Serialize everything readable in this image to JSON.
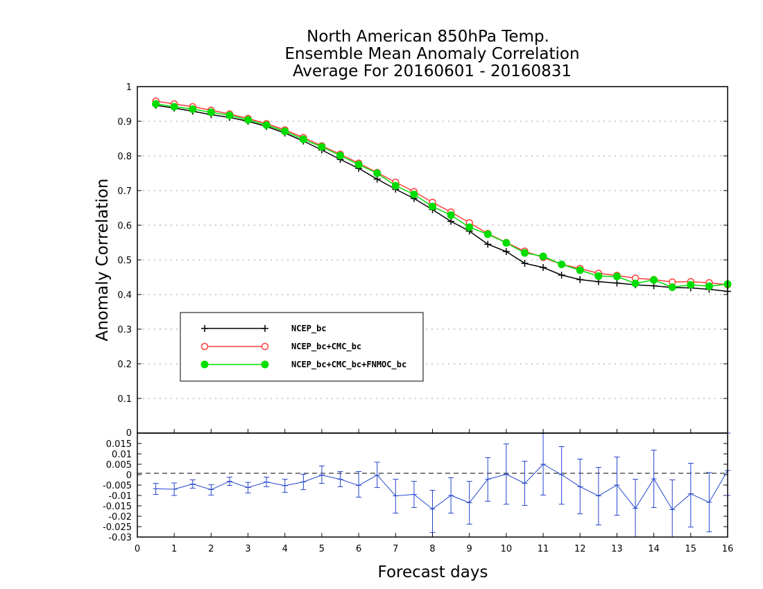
{
  "chart_data": {
    "type": "line",
    "title_lines": [
      "North American 850hPa Temp.",
      "Ensemble Mean Anomaly Correlation",
      "Average For 20160601 - 20160831"
    ],
    "xlabel": "Forecast days",
    "ylabel": "Anomaly Correlation",
    "xlim": [
      0,
      16
    ],
    "x_ticks": [
      "0",
      "1",
      "2",
      "3",
      "4",
      "5",
      "6",
      "7",
      "8",
      "9",
      "10",
      "11",
      "12",
      "13",
      "14",
      "15",
      "16"
    ],
    "main_panel": {
      "ylim": [
        0,
        1
      ],
      "y_ticks": [
        "0",
        "0.1",
        "0.2",
        "0.3",
        "0.4",
        "0.5",
        "0.6",
        "0.7",
        "0.8",
        "0.9",
        "1"
      ],
      "grid": "dotted horizontal",
      "x": [
        0.5,
        1,
        1.5,
        2,
        2.5,
        3,
        3.5,
        4,
        4.5,
        5,
        5.5,
        6,
        6.5,
        7,
        7.5,
        8,
        8.5,
        9,
        9.5,
        10,
        10.5,
        11,
        11.5,
        12,
        12.5,
        13,
        13.5,
        14,
        14.5,
        15,
        15.5,
        16
      ],
      "series": [
        {
          "name": "NCEP_bc",
          "color": "#000000",
          "marker": "plus",
          "values": [
            0.946,
            0.938,
            0.929,
            0.919,
            0.911,
            0.9,
            0.885,
            0.866,
            0.843,
            0.817,
            0.79,
            0.764,
            0.733,
            0.704,
            0.677,
            0.645,
            0.611,
            0.583,
            0.545,
            0.524,
            0.49,
            0.478,
            0.456,
            0.443,
            0.437,
            0.433,
            0.428,
            0.425,
            0.42,
            0.419,
            0.415,
            0.409
          ]
        },
        {
          "name": "NCEP_bc+CMC_bc",
          "color": "#ff3b3b",
          "marker": "open-circle",
          "values": [
            0.958,
            0.95,
            0.942,
            0.932,
            0.921,
            0.908,
            0.893,
            0.875,
            0.853,
            0.829,
            0.805,
            0.779,
            0.752,
            0.724,
            0.697,
            0.666,
            0.638,
            0.607,
            0.576,
            0.55,
            0.525,
            0.507,
            0.487,
            0.475,
            0.461,
            0.455,
            0.447,
            0.443,
            0.436,
            0.437,
            0.434,
            0.428
          ]
        },
        {
          "name": "NCEP_bc+CMC_bc+FNMOC_bc",
          "color": "#00dd00",
          "marker": "filled-circle",
          "values": [
            0.95,
            0.942,
            0.935,
            0.926,
            0.917,
            0.904,
            0.889,
            0.871,
            0.848,
            0.826,
            0.801,
            0.775,
            0.75,
            0.714,
            0.689,
            0.654,
            0.629,
            0.594,
            0.574,
            0.549,
            0.52,
            0.51,
            0.487,
            0.47,
            0.453,
            0.452,
            0.432,
            0.442,
            0.421,
            0.428,
            0.424,
            0.43
          ]
        }
      ],
      "legend_position": "lower-left"
    },
    "difference_panel": {
      "ylim": [
        -0.03,
        0.02
      ],
      "y_ticks": [
        "-0.03",
        "-0.025",
        "-0.02",
        "-0.015",
        "-0.01",
        "-0.005",
        "0",
        "0.005",
        "0.01",
        "0.015"
      ],
      "color": "#2244cc",
      "zero_line": "dashed",
      "x": [
        0.5,
        1,
        1.5,
        2,
        2.5,
        3,
        3.5,
        4,
        4.5,
        5,
        5.5,
        6,
        6.5,
        7,
        7.5,
        8,
        8.5,
        9,
        9.5,
        10,
        10.5,
        11,
        11.5,
        12,
        12.5,
        13,
        13.5,
        14,
        14.5,
        15,
        15.5,
        16
      ],
      "mean": [
        -0.0068,
        -0.007,
        -0.0045,
        -0.0072,
        -0.0032,
        -0.0062,
        -0.0035,
        -0.0053,
        -0.0035,
        -0.0002,
        -0.0022,
        -0.0052,
        -0.0002,
        -0.0102,
        -0.0095,
        -0.0165,
        -0.01,
        -0.0135,
        -0.0022,
        0.0002,
        -0.0042,
        0.005,
        0,
        -0.0058,
        -0.0102,
        -0.005,
        -0.0162,
        -0.002,
        -0.0168,
        -0.0092,
        -0.0133,
        0.002
      ],
      "low": [
        -0.0095,
        -0.01,
        -0.0065,
        -0.0098,
        -0.0052,
        -0.0088,
        -0.0058,
        -0.0085,
        -0.0072,
        -0.0042,
        -0.0058,
        -0.0108,
        -0.0062,
        -0.0185,
        -0.0158,
        -0.0278,
        -0.0185,
        -0.0238,
        -0.0128,
        -0.0142,
        -0.0148,
        -0.0098,
        -0.0142,
        -0.0188,
        -0.0242,
        -0.0195,
        -0.0305,
        -0.0158,
        -0.0305,
        -0.0252,
        -0.0275,
        -0.01
      ],
      "high": [
        -0.0042,
        -0.004,
        -0.0025,
        -0.0048,
        -0.0012,
        -0.0037,
        -0.0012,
        -0.0022,
        0.0002,
        0.0042,
        0.0015,
        0.0015,
        0.006,
        -0.0022,
        -0.0032,
        -0.0075,
        -0.0015,
        -0.0032,
        0.0082,
        0.0148,
        0.0065,
        0.0198,
        0.0135,
        0.0075,
        0.0035,
        0.0085,
        -0.0022,
        0.0118,
        -0.0025,
        0.0055,
        0.001,
        0.02
      ]
    }
  }
}
